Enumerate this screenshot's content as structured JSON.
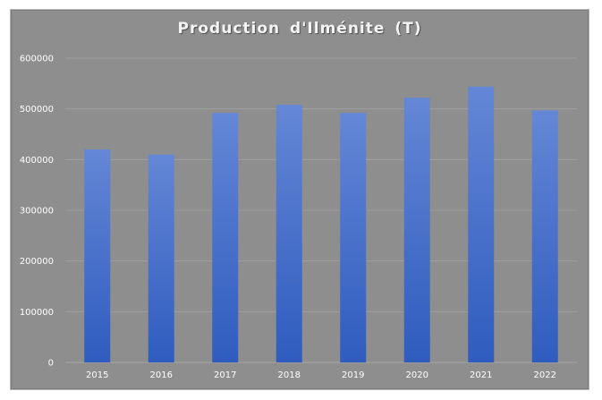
{
  "chart_data": {
    "type": "bar",
    "title": "Production  d'Ilménite  (T)",
    "xlabel": "",
    "ylabel": "",
    "categories": [
      "2015",
      "2016",
      "2017",
      "2018",
      "2019",
      "2020",
      "2021",
      "2022"
    ],
    "values": [
      420000,
      410000,
      492000,
      508000,
      492000,
      522000,
      544000,
      497000
    ],
    "ylim": [
      0,
      600000
    ],
    "yticks": [
      "0",
      "100000",
      "200000",
      "300000",
      "400000",
      "500000",
      "600000"
    ],
    "grid": true,
    "legend": "none",
    "colors": {
      "bar_top": "#6487d6",
      "bar_bottom": "#2f5cbf",
      "plot_background": "#8e8e8e",
      "gridline": "#a2a2a2",
      "text": "#ffffff"
    }
  }
}
